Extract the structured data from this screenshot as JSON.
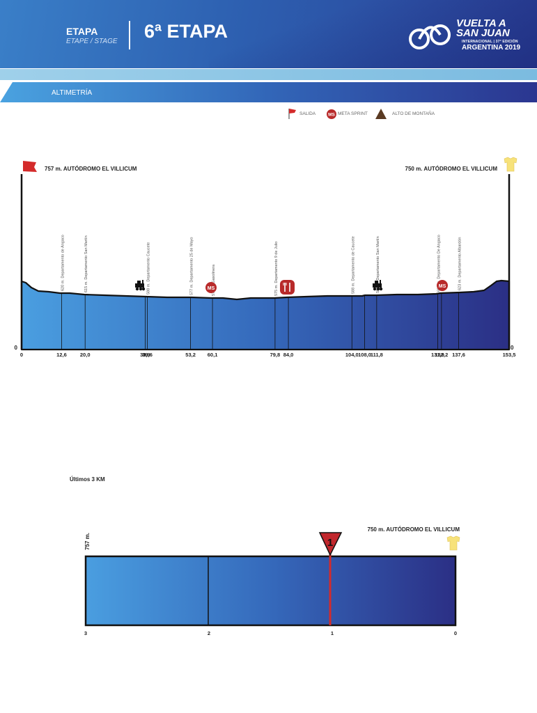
{
  "header": {
    "etapa_label": "ETAPA",
    "etapa_sub": "ETAPE / STAGE",
    "stage_title": "6ª ETAPA",
    "logo": {
      "line1": "VUELTA A",
      "line2": "SAN JUAN",
      "line3": "INTERNACIONAL | 37° EDICIÓN",
      "line4": "ARGENTINA 2019"
    }
  },
  "section_title": "ALTIMETRÍA",
  "legend": [
    {
      "icon": "flag-icon",
      "label": "SALIDA"
    },
    {
      "icon": "meta-sprint-icon",
      "label": "META SPRINT"
    },
    {
      "icon": "mountain-icon",
      "label": "ALTO DE MONTAÑA"
    }
  ],
  "colors": {
    "profile_left": "#4a9ee0",
    "profile_right": "#2b2f85",
    "sprint_red": "#b82a2a",
    "jersey_yellow": "#f7e27a"
  },
  "chart_data": [
    {
      "type": "area",
      "title": "",
      "start_label": "757 m. AUTÓDROMO EL VILLICUM",
      "finish_label": "750 m. AUTÓDROMO EL VILLICUM",
      "y_zero_label": "0",
      "xlim": [
        0,
        153.5
      ],
      "x_ticks": [
        "0",
        "12,6",
        "20,0",
        "38,9",
        "39,6",
        "53,2",
        "60,1",
        "79,8",
        "84,0",
        "104,0",
        "108,0",
        "111,8",
        "131,0",
        "132,2",
        "137,6",
        "153,5"
      ],
      "points": [
        {
          "km": 12.6,
          "label": "620 m. Departamento de Angaco"
        },
        {
          "km": 20.0,
          "label": "615 m. Departamento San Martín"
        },
        {
          "km": 39.6,
          "label": "588 m. Departamento Caucete"
        },
        {
          "km": 53.2,
          "label": "577 m. Departamento 25 de Mayo"
        },
        {
          "km": 60.1,
          "label": "571 m. Gasolinera"
        },
        {
          "km": 79.8,
          "label": "575 m. Departamento 9 de Julio"
        },
        {
          "km": 104.0,
          "label": "588 m. Departamento de Caucete"
        },
        {
          "km": 111.8,
          "label": "588 m. Departamento San Martín"
        },
        {
          "km": 131.0,
          "label": "608 m. Departamento De Angaco"
        },
        {
          "km": 137.6,
          "label": "623 m. Departamento Albardón"
        }
      ],
      "markers": [
        {
          "km": 38.9,
          "type": "train-icon"
        },
        {
          "km": 60.1,
          "type": "meta-sprint-icon",
          "label": "MS"
        },
        {
          "km": 84.0,
          "type": "feed-zone-icon"
        },
        {
          "km": 108.0,
          "type": "train-icon"
        },
        {
          "km": 132.2,
          "type": "meta-sprint-icon",
          "label": "MS"
        }
      ]
    },
    {
      "type": "area",
      "title": "Últimos 3 KM",
      "start_label": "757 m.",
      "finish_label": "750 m. AUTÓDROMO EL VILLICUM",
      "x_ticks": [
        "3",
        "2",
        "1",
        "0"
      ],
      "marker": {
        "km_to_go": 1,
        "label": "1",
        "type": "flamme-rouge-icon"
      }
    }
  ]
}
